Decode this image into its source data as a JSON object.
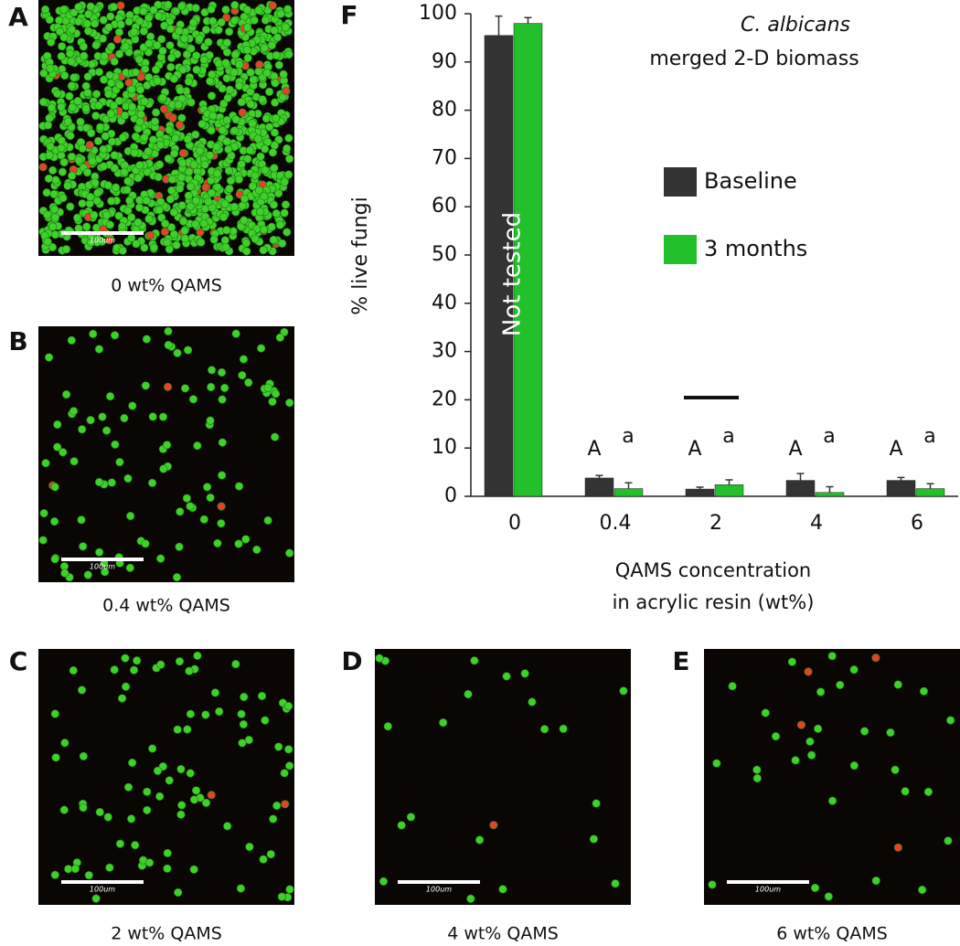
{
  "panels": [
    {
      "letter": "A",
      "caption": "0 wt% QAMS",
      "scale": "100um"
    },
    {
      "letter": "B",
      "caption": "0.4 wt% QAMS",
      "scale": "100um"
    },
    {
      "letter": "C",
      "caption": "2 wt% QAMS",
      "scale": "100um"
    },
    {
      "letter": "D",
      "caption": "4 wt% QAMS",
      "scale": "100um"
    },
    {
      "letter": "E",
      "caption": "6 wt% QAMS",
      "scale": "100um"
    }
  ],
  "chart_data": {
    "type": "bar",
    "letter": "F",
    "title": "C. albicans",
    "subtitle": "merged 2-D biomass",
    "y_label": "% live fungi",
    "x_label": [
      "QAMS concentration",
      "in acrylic resin (wt%)"
    ],
    "overlay_text": "Not tested",
    "categories": [
      "0",
      "0.4",
      "2",
      "4",
      "6"
    ],
    "series": [
      {
        "name": "Baseline",
        "color": "#333333",
        "values": [
          95.5,
          3.8,
          1.5,
          3.3,
          3.3
        ],
        "errors": [
          4,
          0.5,
          0.4,
          1.4,
          0.6
        ],
        "letters": [
          null,
          "A",
          "A",
          "A",
          "A"
        ]
      },
      {
        "name": "3 months",
        "color": "#22c02a",
        "values": [
          98,
          1.6,
          2.4,
          0.8,
          1.6
        ],
        "errors": [
          1.2,
          1.2,
          1,
          1.2,
          1
        ],
        "letters": [
          null,
          "a",
          "a",
          "a",
          "a"
        ]
      }
    ],
    "ylim": [
      0,
      100
    ],
    "yticks": [
      0,
      10,
      20,
      30,
      40,
      50,
      60,
      70,
      80,
      90,
      100
    ]
  }
}
